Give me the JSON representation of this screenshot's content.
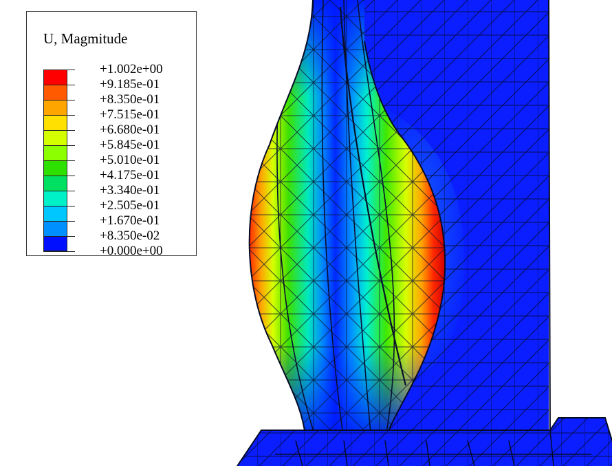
{
  "legend": {
    "title": "U, Magmitude",
    "entries": [
      {
        "label": "+1.002e+00",
        "color": "#ff0000"
      },
      {
        "label": "+9.185e-01",
        "color": "#ff5a00"
      },
      {
        "label": "+8.350e-01",
        "color": "#ffa500"
      },
      {
        "label": "+7.515e-01",
        "color": "#ffe000"
      },
      {
        "label": "+6.680e-01",
        "color": "#d4ff00"
      },
      {
        "label": "+5.845e-01",
        "color": "#8cff00"
      },
      {
        "label": "+5.010e-01",
        "color": "#2ee000"
      },
      {
        "label": "+4.175e-01",
        "color": "#00e060"
      },
      {
        "label": "+3.340e-01",
        "color": "#00f0c8"
      },
      {
        "label": "+2.505e-01",
        "color": "#00c8ff"
      },
      {
        "label": "+1.670e-01",
        "color": "#0090ff"
      },
      {
        "label": "+8.350e-02",
        "color": "#1850ff"
      },
      {
        "label": "+0.000e+00",
        "color": "#0010ff"
      }
    ]
  }
}
